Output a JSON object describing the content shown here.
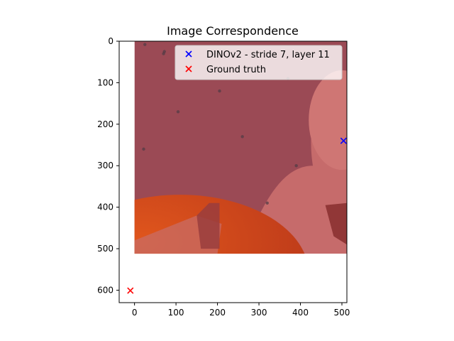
{
  "chart_data": {
    "type": "scatter",
    "title": "Image Correspondence",
    "xlabel": "",
    "ylabel": "",
    "xlim": [
      -37,
      512
    ],
    "ylim": [
      630,
      0
    ],
    "xticks": [
      0,
      100,
      200,
      300,
      400,
      500
    ],
    "yticks": [
      0,
      100,
      200,
      300,
      400,
      500,
      600
    ],
    "grid": false,
    "legend_position": "top-right",
    "background_image": {
      "extent": [
        0,
        512,
        512,
        0
      ],
      "description_colors": {
        "base": "#9b4a55",
        "light_region": "#c86a6a",
        "orange_object": "#c9421a"
      }
    },
    "series": [
      {
        "name": "DINOv2 - stride 7, layer 11",
        "marker": "x",
        "color": "#0000ff",
        "points": [
          {
            "x": 504,
            "y": 240
          }
        ]
      },
      {
        "name": "Ground truth",
        "marker": "x",
        "color": "#ff0000",
        "points": [
          {
            "x": -10,
            "y": 601
          }
        ]
      }
    ]
  }
}
